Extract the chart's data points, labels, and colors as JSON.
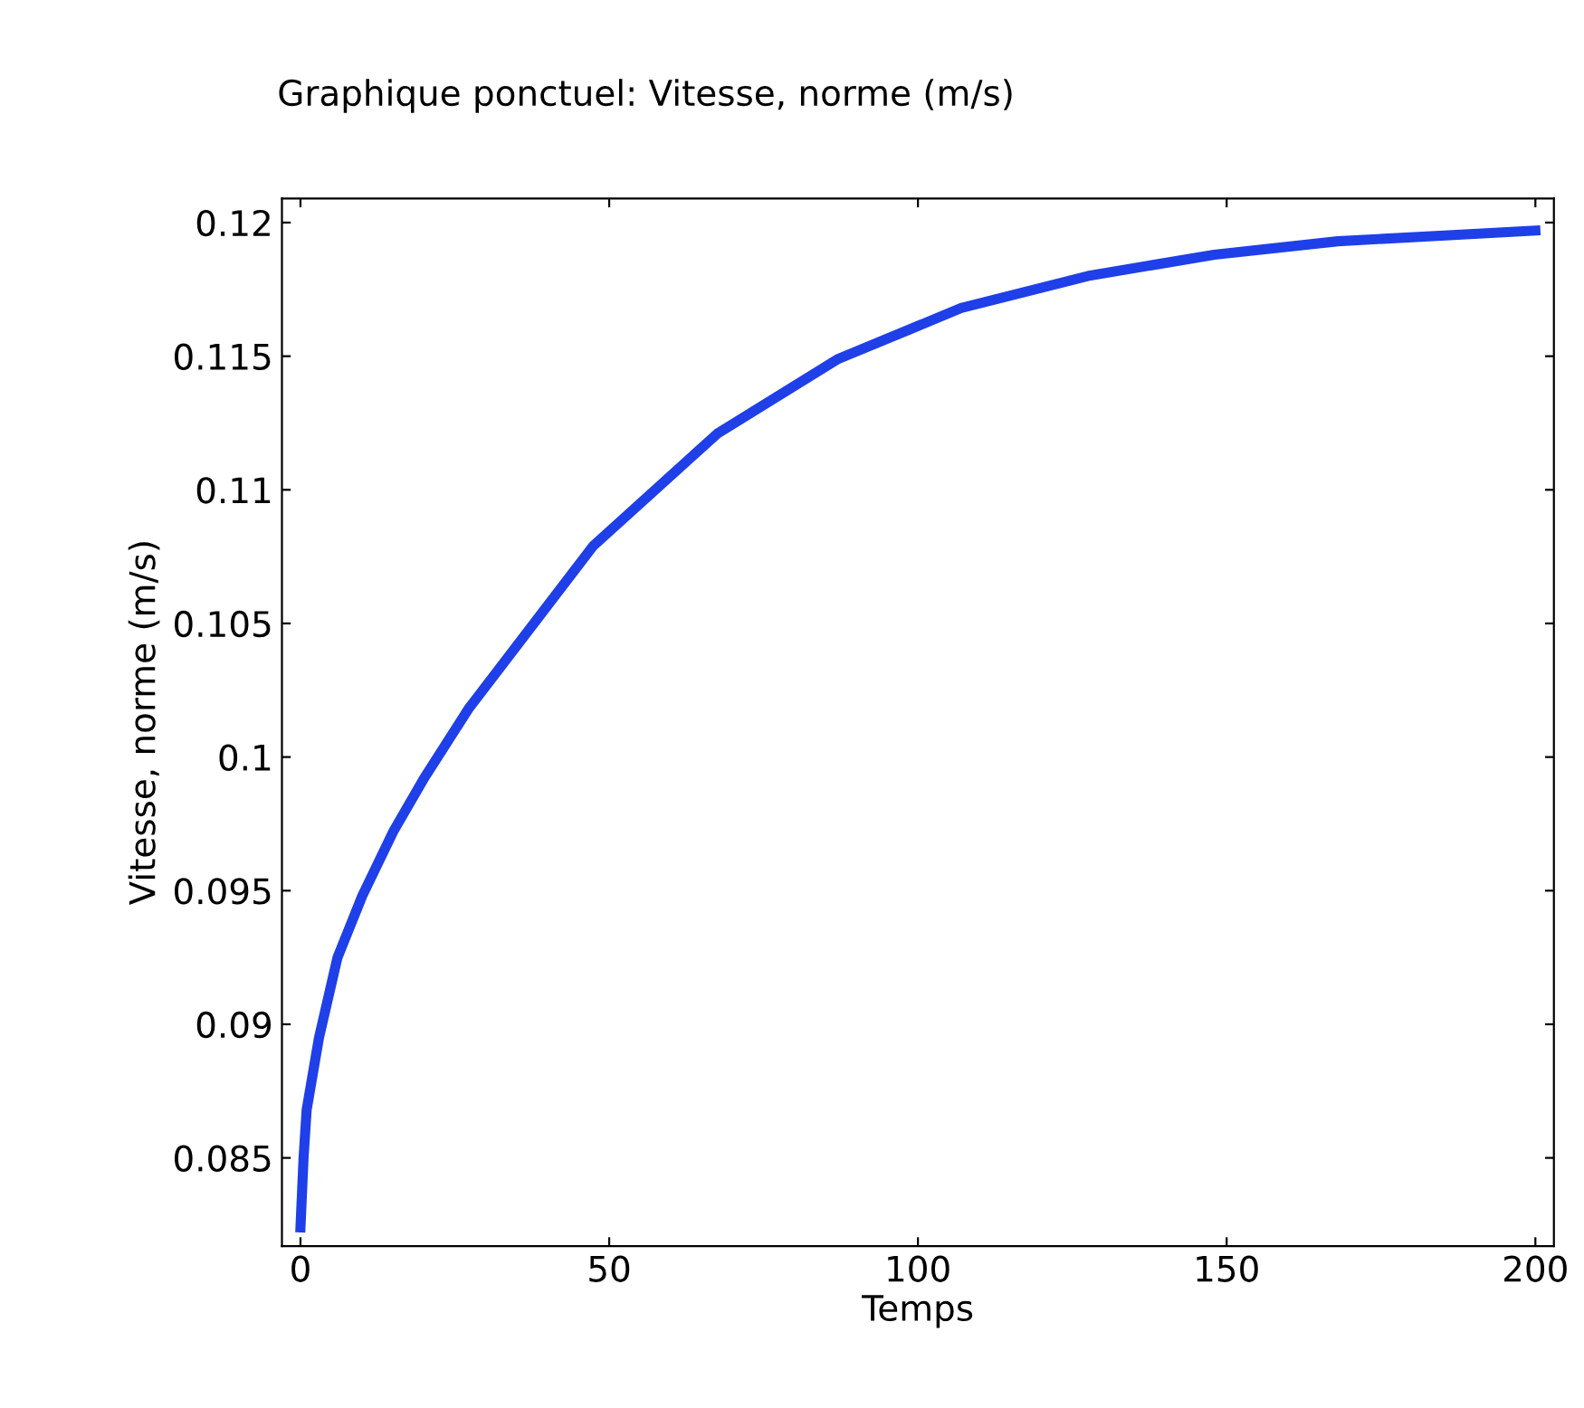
{
  "chart_data": {
    "type": "line",
    "title": "Graphique ponctuel: Vitesse, norme (m/s)",
    "xlabel": "Temps",
    "ylabel": "Vitesse, norme (m/s)",
    "series": [
      {
        "color": "#1f3fe8",
        "x": [
          0,
          0.5,
          1,
          3,
          6,
          10,
          15,
          20,
          27.2,
          47.4,
          67.5,
          87.1,
          107,
          127.5,
          148,
          168,
          200
        ],
        "values": [
          0.0824,
          0.085,
          0.0868,
          0.0895,
          0.0925,
          0.0948,
          0.0972,
          0.0992,
          0.1018,
          0.1079,
          0.1121,
          0.1149,
          0.1168,
          0.118,
          0.1188,
          0.1193,
          0.1197
        ]
      }
    ],
    "xlim": [
      -3,
      203
    ],
    "ylim": [
      0.0817,
      0.1209
    ],
    "xticks": [
      0,
      50,
      100,
      150,
      200
    ],
    "yticks": [
      0.085,
      0.09,
      0.095,
      0.1,
      0.105,
      0.11,
      0.115,
      0.12
    ],
    "grid": false,
    "legend": false,
    "marker": "none",
    "line_style": "solid"
  }
}
